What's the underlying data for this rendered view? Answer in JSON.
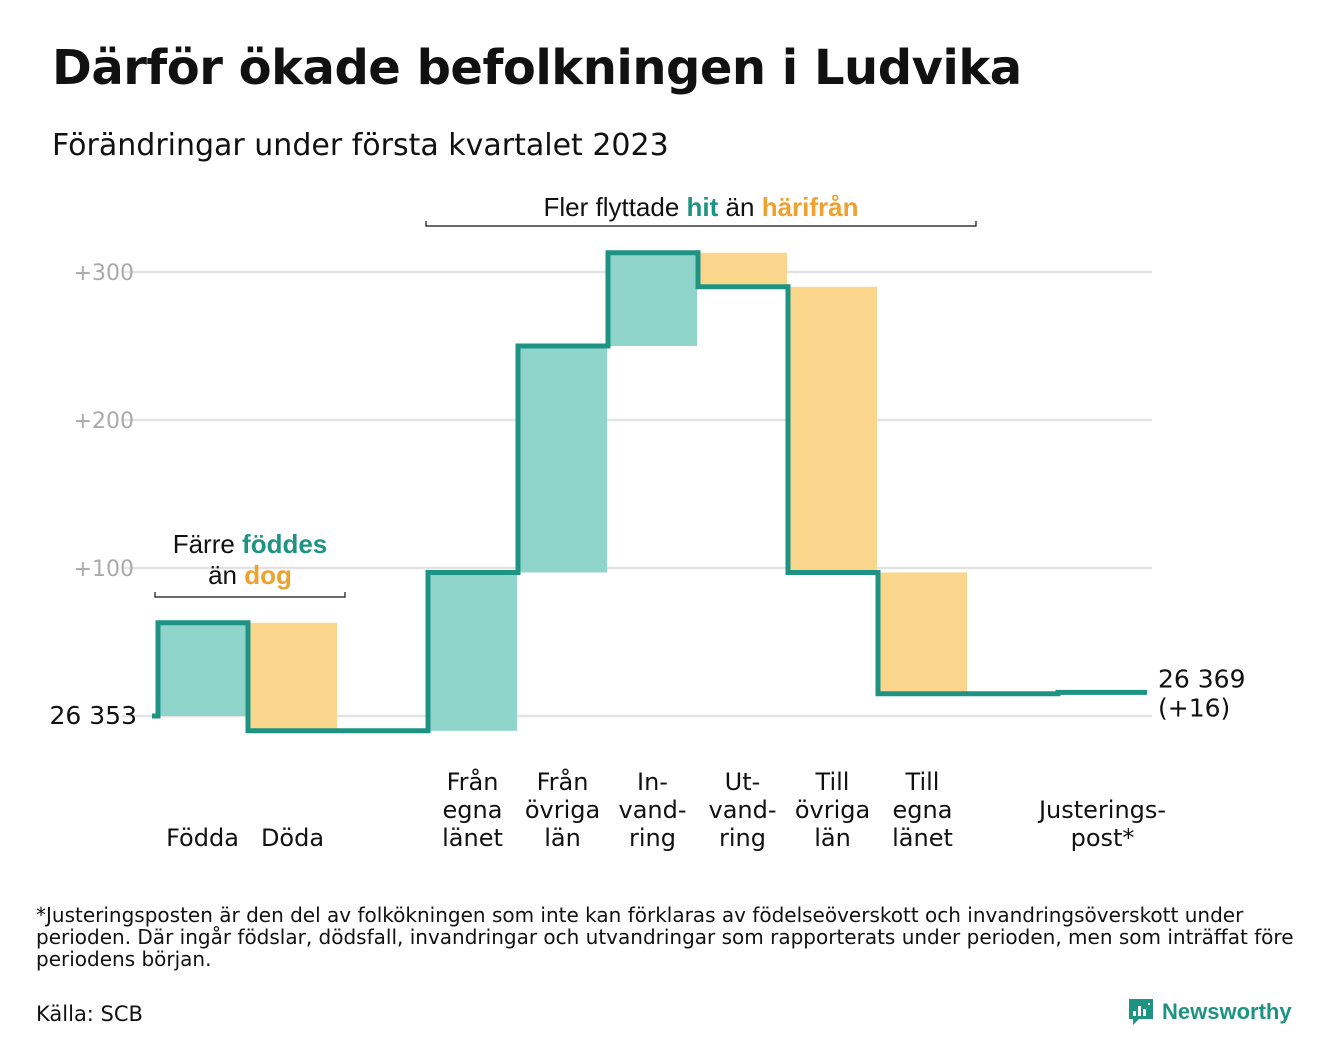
{
  "title": "Därför ökade befolkningen i Ludvika",
  "subtitle": "Förändringar under första kvartalet 2023",
  "footnote": "*Justeringsposten är den del av folkökningen som inte kan förklaras av födelseöverskott och invandringsöverskott under perioden. Där ingår födslar, dödsfall, invandringar och utvandringar som rapporterats under perioden, men som inträffat före periodens början.",
  "source": "Källa: SCB",
  "logo": {
    "name": "newsworthy-logo-icon",
    "text": "Newsworthy"
  },
  "colors": {
    "increase": "#8fd5cc",
    "decrease": "#fad58c",
    "line": "#1e9384",
    "grid": "#e3e3e3",
    "teal_text": "#1e9384",
    "orange_text": "#f0a02e"
  },
  "annotations": [
    {
      "id": "births",
      "line1_parts": [
        {
          "text": "Färre ",
          "style": "plain"
        },
        {
          "text": "föddes",
          "style": "teal"
        }
      ],
      "line2_parts": [
        {
          "text": "än ",
          "style": "plain"
        },
        {
          "text": "dog",
          "style": "orange"
        }
      ],
      "span_categories": [
        0,
        1
      ]
    },
    {
      "id": "migration",
      "line1_parts": [
        {
          "text": "Fler flyttade ",
          "style": "plain"
        },
        {
          "text": "hit",
          "style": "teal"
        },
        {
          "text": " än ",
          "style": "plain"
        },
        {
          "text": "härifrån",
          "style": "orange"
        }
      ],
      "span_categories": [
        3,
        8
      ]
    }
  ],
  "chart_data": {
    "type": "waterfall",
    "start_label": "26 353",
    "end_label": [
      "26 369",
      "(+16)"
    ],
    "start_value": 0,
    "y_ticks": [
      {
        "value": 100,
        "label": "+100"
      },
      {
        "value": 200,
        "label": "+200"
      },
      {
        "value": 300,
        "label": "+300"
      }
    ],
    "ylim": [
      -20,
      320
    ],
    "grid": true,
    "categories": [
      {
        "label": [
          "Födda"
        ],
        "change": 63,
        "kind": "increase"
      },
      {
        "label": [
          "Döda"
        ],
        "change": -73,
        "kind": "decrease"
      },
      {
        "label": [],
        "change": 0,
        "kind": "spacer"
      },
      {
        "label": [
          "Från",
          "egna",
          "länet"
        ],
        "change": 107,
        "kind": "increase"
      },
      {
        "label": [
          "Från",
          "övriga",
          "län"
        ],
        "change": 153,
        "kind": "increase"
      },
      {
        "label": [
          "In-",
          "vand-",
          "ring"
        ],
        "change": 63,
        "kind": "increase"
      },
      {
        "label": [
          "Ut-",
          "vand-",
          "ring"
        ],
        "change": -23,
        "kind": "decrease"
      },
      {
        "label": [
          "Till",
          "övriga",
          "län"
        ],
        "change": -193,
        "kind": "decrease"
      },
      {
        "label": [
          "Till",
          "egna",
          "länet"
        ],
        "change": -82,
        "kind": "decrease"
      },
      {
        "label": [],
        "change": 0,
        "kind": "spacer"
      },
      {
        "label": [
          "Justerings-",
          "post*"
        ],
        "change": 1,
        "kind": "adjustment"
      }
    ]
  }
}
